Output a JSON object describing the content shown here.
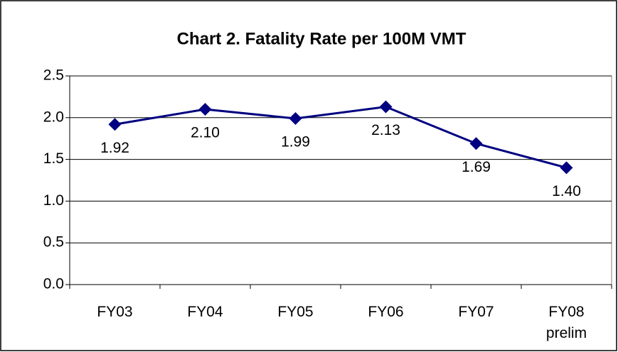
{
  "chart_data": {
    "type": "line",
    "title": "Chart 2. Fatality Rate per 100M VMT",
    "categories": [
      "FY03",
      "FY04",
      "FY05",
      "FY06",
      "FY07",
      "FY08 prelim"
    ],
    "series": [
      {
        "name": "Fatality Rate",
        "color": "#000080",
        "values": [
          1.92,
          2.1,
          1.99,
          2.13,
          1.69,
          1.4
        ],
        "value_labels": [
          "1.92",
          "2.10",
          "1.99",
          "2.13",
          "1.69",
          "1.40"
        ]
      }
    ],
    "ylim": [
      0,
      2.5
    ],
    "yticks": [
      {
        "value": 0,
        "label": "0.0"
      },
      0.5,
      {
        "value": 1,
        "label": "1.0"
      },
      1.5,
      {
        "value": 2,
        "label": "2.0"
      },
      2.5
    ],
    "grid": true
  }
}
